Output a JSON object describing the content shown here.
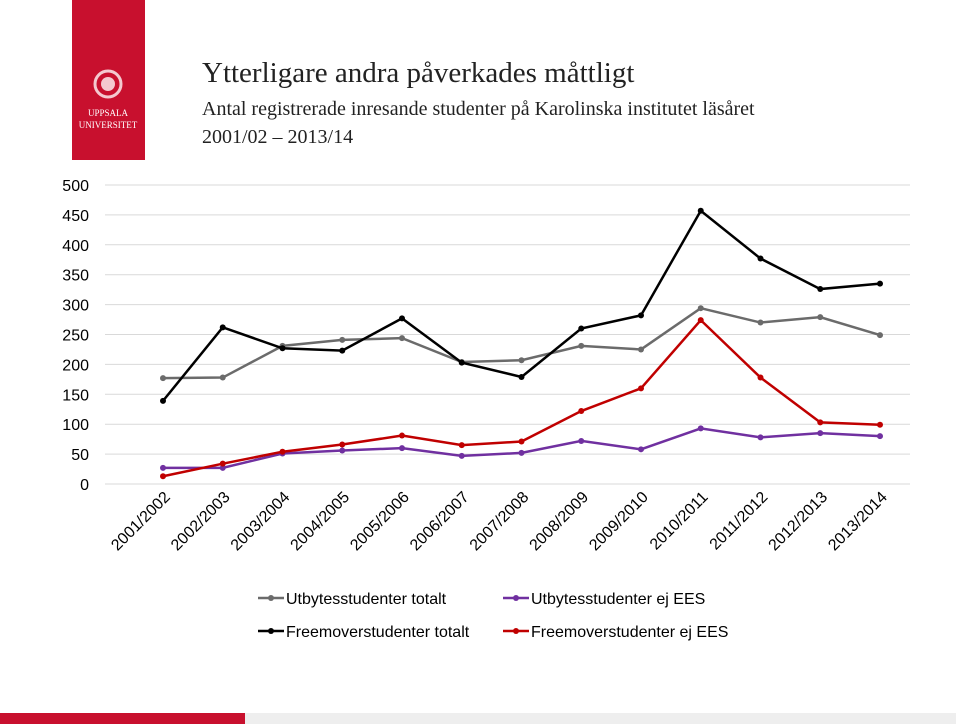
{
  "logo": {
    "line1": "UPPSALA",
    "line2": "UNIVERSITET"
  },
  "chart_data": {
    "type": "line",
    "title": "Ytterligare andra påverkades måttligt",
    "subtitle": [
      "Antal registrerade inresande studenter på Karolinska institutet läsåret",
      "2001/02 – 2013/14"
    ],
    "categories": [
      "2001/2002",
      "2002/2003",
      "2003/2004",
      "2004/2005",
      "2005/2006",
      "2006/2007",
      "2007/2008",
      "2008/2009",
      "2009/2010",
      "2010/2011",
      "2011/2012",
      "2012/2013",
      "2013/2014"
    ],
    "series": [
      {
        "name": "Utbytesstudenter totalt",
        "color": "#6b6b6b",
        "values": [
          177,
          178,
          231,
          241,
          244,
          204,
          207,
          231,
          225,
          294,
          270,
          279,
          249
        ]
      },
      {
        "name": "Utbytesstudenter ej EES",
        "color": "#7030a0",
        "values": [
          27,
          27,
          51,
          56,
          60,
          47,
          52,
          72,
          58,
          93,
          78,
          85,
          80
        ]
      },
      {
        "name": "Freemoverstudenter totalt",
        "color": "#000000",
        "values": [
          139,
          262,
          227,
          223,
          277,
          203,
          179,
          260,
          282,
          457,
          377,
          326,
          335
        ]
      },
      {
        "name": "Freemoverstudenter ej EES",
        "color": "#c00000",
        "values": [
          13,
          34,
          54,
          66,
          81,
          65,
          71,
          122,
          160,
          274,
          178,
          103,
          99
        ]
      }
    ],
    "ylim": [
      0,
      500
    ],
    "yticks": [
      0,
      50,
      100,
      150,
      200,
      250,
      300,
      350,
      400,
      450,
      500
    ],
    "grid": true
  }
}
